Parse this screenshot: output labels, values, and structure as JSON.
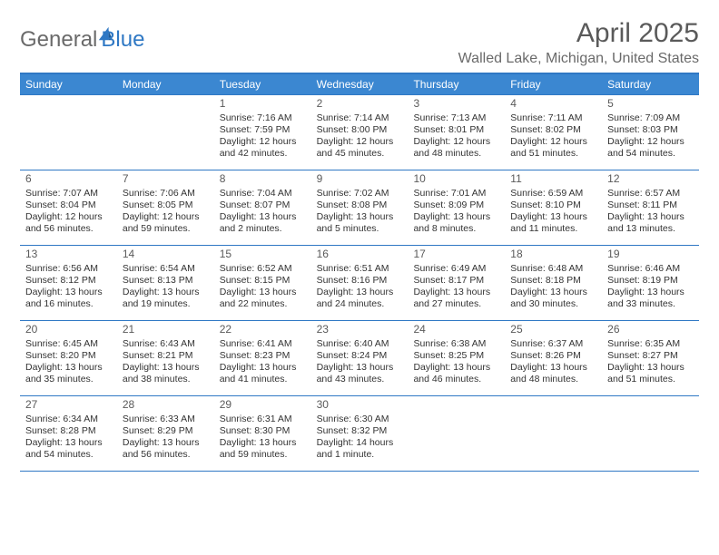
{
  "brand": {
    "part1": "General",
    "part2": "Blue",
    "sail_color": "#2f78c4"
  },
  "title": "April 2025",
  "location": "Walled Lake, Michigan, United States",
  "colors": {
    "header_bg": "#3b87d1",
    "header_text": "#ffffff",
    "rule": "#2f78c4",
    "body_text": "#333333",
    "muted_text": "#6a6a6a",
    "background": "#ffffff"
  },
  "typography": {
    "title_fontsize": 30,
    "location_fontsize": 16,
    "header_fontsize": 12,
    "daynum_fontsize": 12,
    "body_fontsize": 10.5
  },
  "layout": {
    "columns": 7,
    "rows": 5,
    "first_weekday_index": 2
  },
  "day_headers": [
    "Sunday",
    "Monday",
    "Tuesday",
    "Wednesday",
    "Thursday",
    "Friday",
    "Saturday"
  ],
  "days": [
    {
      "n": 1,
      "sunrise": "7:16 AM",
      "sunset": "7:59 PM",
      "daylight": "12 hours and 42 minutes."
    },
    {
      "n": 2,
      "sunrise": "7:14 AM",
      "sunset": "8:00 PM",
      "daylight": "12 hours and 45 minutes."
    },
    {
      "n": 3,
      "sunrise": "7:13 AM",
      "sunset": "8:01 PM",
      "daylight": "12 hours and 48 minutes."
    },
    {
      "n": 4,
      "sunrise": "7:11 AM",
      "sunset": "8:02 PM",
      "daylight": "12 hours and 51 minutes."
    },
    {
      "n": 5,
      "sunrise": "7:09 AM",
      "sunset": "8:03 PM",
      "daylight": "12 hours and 54 minutes."
    },
    {
      "n": 6,
      "sunrise": "7:07 AM",
      "sunset": "8:04 PM",
      "daylight": "12 hours and 56 minutes."
    },
    {
      "n": 7,
      "sunrise": "7:06 AM",
      "sunset": "8:05 PM",
      "daylight": "12 hours and 59 minutes."
    },
    {
      "n": 8,
      "sunrise": "7:04 AM",
      "sunset": "8:07 PM",
      "daylight": "13 hours and 2 minutes."
    },
    {
      "n": 9,
      "sunrise": "7:02 AM",
      "sunset": "8:08 PM",
      "daylight": "13 hours and 5 minutes."
    },
    {
      "n": 10,
      "sunrise": "7:01 AM",
      "sunset": "8:09 PM",
      "daylight": "13 hours and 8 minutes."
    },
    {
      "n": 11,
      "sunrise": "6:59 AM",
      "sunset": "8:10 PM",
      "daylight": "13 hours and 11 minutes."
    },
    {
      "n": 12,
      "sunrise": "6:57 AM",
      "sunset": "8:11 PM",
      "daylight": "13 hours and 13 minutes."
    },
    {
      "n": 13,
      "sunrise": "6:56 AM",
      "sunset": "8:12 PM",
      "daylight": "13 hours and 16 minutes."
    },
    {
      "n": 14,
      "sunrise": "6:54 AM",
      "sunset": "8:13 PM",
      "daylight": "13 hours and 19 minutes."
    },
    {
      "n": 15,
      "sunrise": "6:52 AM",
      "sunset": "8:15 PM",
      "daylight": "13 hours and 22 minutes."
    },
    {
      "n": 16,
      "sunrise": "6:51 AM",
      "sunset": "8:16 PM",
      "daylight": "13 hours and 24 minutes."
    },
    {
      "n": 17,
      "sunrise": "6:49 AM",
      "sunset": "8:17 PM",
      "daylight": "13 hours and 27 minutes."
    },
    {
      "n": 18,
      "sunrise": "6:48 AM",
      "sunset": "8:18 PM",
      "daylight": "13 hours and 30 minutes."
    },
    {
      "n": 19,
      "sunrise": "6:46 AM",
      "sunset": "8:19 PM",
      "daylight": "13 hours and 33 minutes."
    },
    {
      "n": 20,
      "sunrise": "6:45 AM",
      "sunset": "8:20 PM",
      "daylight": "13 hours and 35 minutes."
    },
    {
      "n": 21,
      "sunrise": "6:43 AM",
      "sunset": "8:21 PM",
      "daylight": "13 hours and 38 minutes."
    },
    {
      "n": 22,
      "sunrise": "6:41 AM",
      "sunset": "8:23 PM",
      "daylight": "13 hours and 41 minutes."
    },
    {
      "n": 23,
      "sunrise": "6:40 AM",
      "sunset": "8:24 PM",
      "daylight": "13 hours and 43 minutes."
    },
    {
      "n": 24,
      "sunrise": "6:38 AM",
      "sunset": "8:25 PM",
      "daylight": "13 hours and 46 minutes."
    },
    {
      "n": 25,
      "sunrise": "6:37 AM",
      "sunset": "8:26 PM",
      "daylight": "13 hours and 48 minutes."
    },
    {
      "n": 26,
      "sunrise": "6:35 AM",
      "sunset": "8:27 PM",
      "daylight": "13 hours and 51 minutes."
    },
    {
      "n": 27,
      "sunrise": "6:34 AM",
      "sunset": "8:28 PM",
      "daylight": "13 hours and 54 minutes."
    },
    {
      "n": 28,
      "sunrise": "6:33 AM",
      "sunset": "8:29 PM",
      "daylight": "13 hours and 56 minutes."
    },
    {
      "n": 29,
      "sunrise": "6:31 AM",
      "sunset": "8:30 PM",
      "daylight": "13 hours and 59 minutes."
    },
    {
      "n": 30,
      "sunrise": "6:30 AM",
      "sunset": "8:32 PM",
      "daylight": "14 hours and 1 minute."
    }
  ],
  "labels": {
    "sunrise": "Sunrise:",
    "sunset": "Sunset:",
    "daylight": "Daylight:"
  }
}
